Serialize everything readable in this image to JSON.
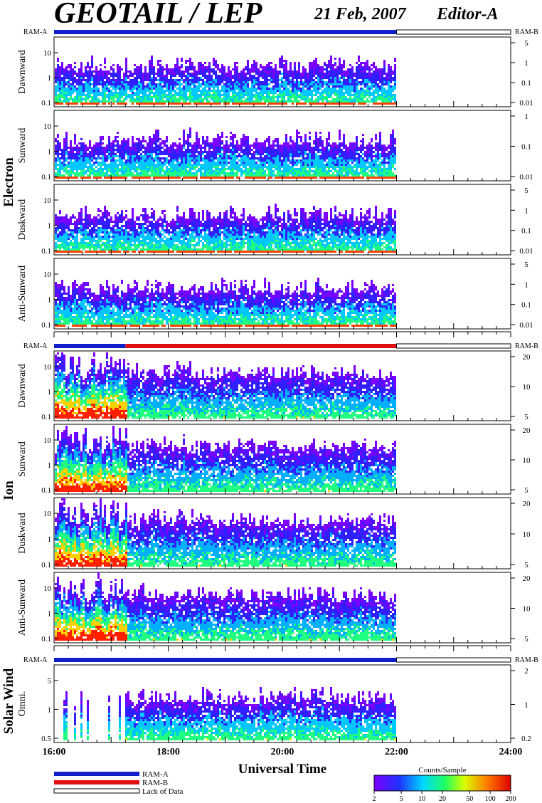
{
  "header": {
    "title": "GEOTAIL / LEP",
    "date": "21 Feb, 2007",
    "editor": "Editor-A"
  },
  "colors": {
    "ram_a": "#1020c8",
    "ram_b": "#e01010",
    "panel_border": "#000000"
  },
  "groups": [
    {
      "name": "Electron",
      "ram_left": "RAM-A",
      "ram_right": "RAM-B"
    },
    {
      "name": "Ion",
      "ram_left": "RAM-A",
      "ram_right": "RAM-B"
    },
    {
      "name": "Solar Wind",
      "ram_left": "RAM-A",
      "ram_right": "RAM-B"
    }
  ],
  "panels": [
    {
      "group": "Electron",
      "label": "Dawnward",
      "left_ticks": [
        "10",
        "1",
        "0.1"
      ],
      "right_ticks": [
        "5",
        "1",
        "0.1",
        "0.01"
      ]
    },
    {
      "group": "Electron",
      "label": "Sunward",
      "left_ticks": [
        "10",
        "1",
        "0.1"
      ],
      "right_ticks": [
        "1",
        "0.1",
        "0.01"
      ]
    },
    {
      "group": "Electron",
      "label": "Duskward",
      "left_ticks": [
        "10",
        "1",
        "0.1"
      ],
      "right_ticks": [
        "5",
        "1",
        "0.1",
        "0.01"
      ]
    },
    {
      "group": "Electron",
      "label": "Anti-Sunward",
      "left_ticks": [
        "10",
        "1",
        "0.1"
      ],
      "right_ticks": [
        "5",
        "1",
        "0.1",
        "0.01"
      ]
    },
    {
      "group": "Ion",
      "label": "Dawnward",
      "left_ticks": [
        "10",
        "1",
        "0.1"
      ],
      "right_ticks": [
        "20",
        "10",
        "5"
      ]
    },
    {
      "group": "Ion",
      "label": "Sunward",
      "left_ticks": [
        "10",
        "1",
        "0.1"
      ],
      "right_ticks": [
        "20",
        "10",
        "5"
      ]
    },
    {
      "group": "Ion",
      "label": "Duskward",
      "left_ticks": [
        "10",
        "1",
        "0.1"
      ],
      "right_ticks": [
        "20",
        "10",
        "5"
      ]
    },
    {
      "group": "Ion",
      "label": "Anti-Sunward",
      "left_ticks": [
        "10",
        "1",
        "0.1"
      ],
      "right_ticks": [
        "20",
        "10",
        "5"
      ]
    },
    {
      "group": "Solar Wind",
      "label": "Omni.",
      "left_ticks": [
        "5",
        "1",
        "0.5"
      ],
      "right_ticks": [
        "2",
        "1",
        "0.2"
      ]
    }
  ],
  "chart_data": {
    "type": "heatmap",
    "title": "GEOTAIL / LEP",
    "xlabel": "Universal Time",
    "x_ticks": [
      "16:00",
      "18:00",
      "20:00",
      "22:00",
      "24:00"
    ],
    "xlim": [
      "16:00",
      "24:00"
    ],
    "data_end": "22:00",
    "ram_status": [
      {
        "group": "Electron",
        "segments": [
          {
            "from": "16:00",
            "to": "22:00",
            "mode": "RAM-A"
          },
          {
            "from": "22:00",
            "to": "24:00",
            "mode": "Lack of Data"
          }
        ]
      },
      {
        "group": "Ion",
        "segments": [
          {
            "from": "16:00",
            "to": "17:15",
            "mode": "RAM-A"
          },
          {
            "from": "17:15",
            "to": "22:00",
            "mode": "RAM-B"
          },
          {
            "from": "22:00",
            "to": "24:00",
            "mode": "Lack of Data"
          }
        ]
      },
      {
        "group": "Solar Wind",
        "segments": [
          {
            "from": "16:00",
            "to": "22:00",
            "mode": "RAM-A"
          },
          {
            "from": "22:00",
            "to": "24:00",
            "mode": "Lack of Data"
          }
        ]
      }
    ],
    "colorbar": {
      "label": "Counts/Sample",
      "ticks": [
        "2",
        "5",
        "10",
        "20",
        "50",
        "100",
        "200"
      ],
      "scale": "log",
      "range": [
        2,
        200
      ]
    }
  },
  "legend": [
    {
      "label": "RAM-A",
      "color": "#1020c8"
    },
    {
      "label": "RAM-B",
      "color": "#e01010"
    },
    {
      "label": "Lack of Data",
      "color": "none"
    }
  ]
}
